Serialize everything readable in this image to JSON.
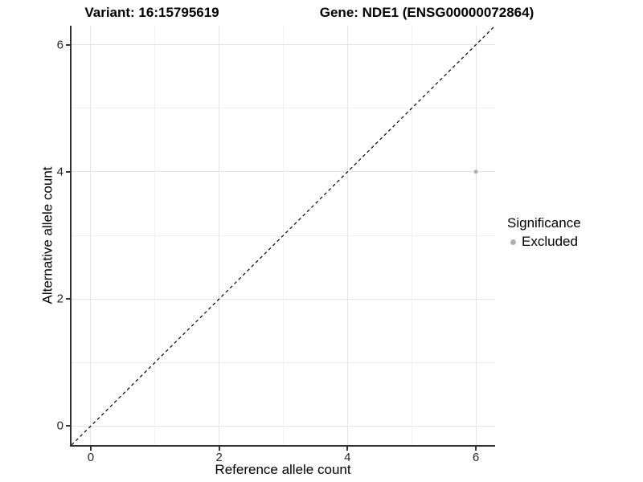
{
  "titles": {
    "variant": "Variant: 16:15795619",
    "gene": "Gene: NDE1 (ENSG00000072864)"
  },
  "chart_data": {
    "type": "scatter",
    "xlabel": "Reference allele count",
    "ylabel": "Alternative allele count",
    "xlim": [
      -0.3,
      6.3
    ],
    "ylim": [
      -0.3,
      6.3
    ],
    "x_ticks_major": [
      0,
      2,
      4,
      6
    ],
    "x_ticks_minor": [
      1,
      3,
      5
    ],
    "y_ticks_major": [
      0,
      2,
      4,
      6
    ],
    "y_ticks_minor": [
      1,
      3,
      5
    ],
    "grid": true,
    "series": [
      {
        "name": "Excluded",
        "color": "#b0b0b0",
        "marker": "circle",
        "points": [
          {
            "x": 6,
            "y": 4
          }
        ]
      }
    ],
    "reference_line": {
      "type": "abline",
      "slope": 1,
      "intercept": 0,
      "style": "dashed",
      "color": "#000000"
    },
    "legend": {
      "title": "Significance",
      "position": "right",
      "items": [
        {
          "label": "Excluded",
          "color": "#b0b0b0",
          "marker": "circle"
        }
      ]
    }
  },
  "colors": {
    "background": "#ffffff",
    "axis_line": "#333333",
    "tick_text": "#262626",
    "grid_major": "#e4e4e4",
    "grid_minor": "#f1f1f1",
    "point": "#b0b0b0"
  }
}
